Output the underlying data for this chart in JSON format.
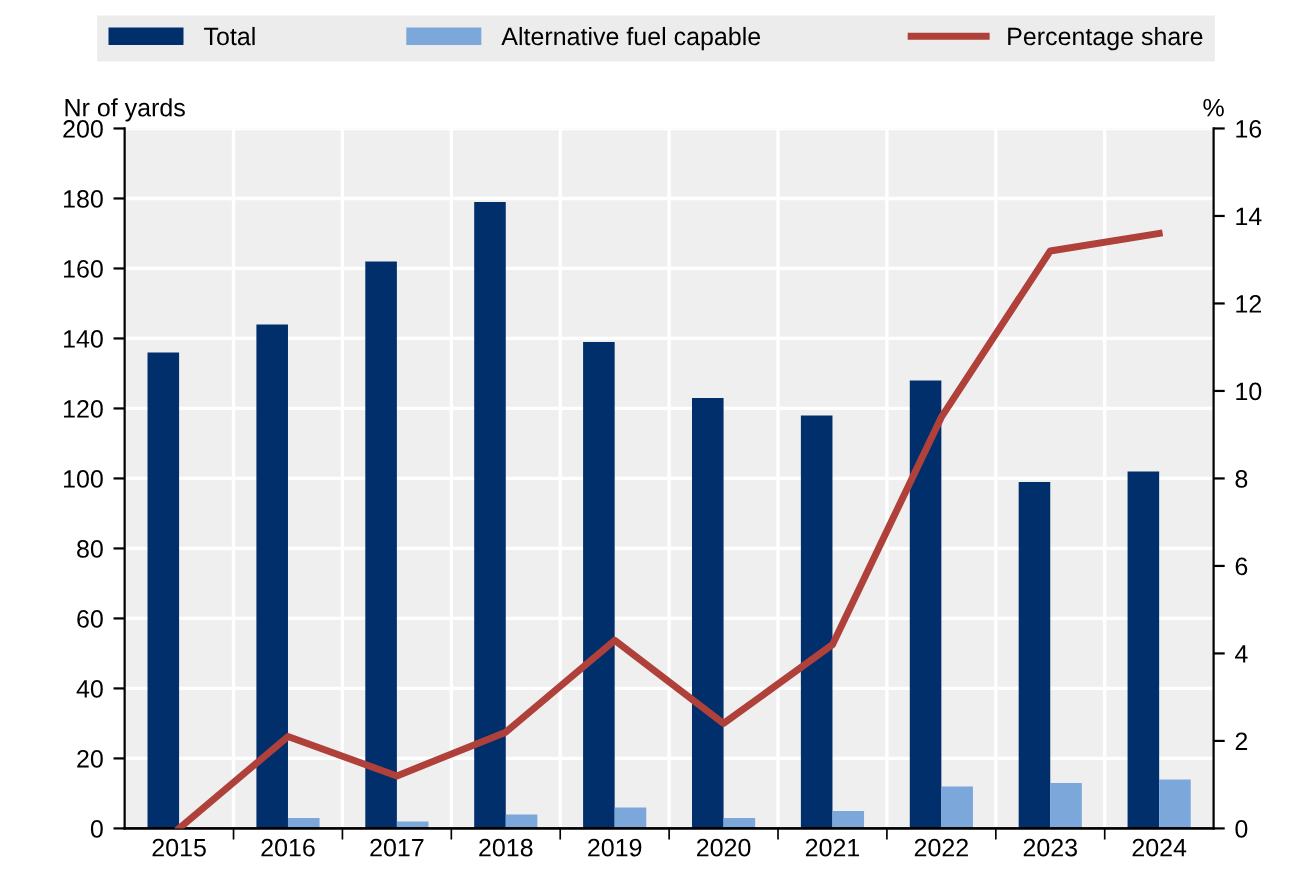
{
  "chart_data": {
    "type": "bar",
    "ylabel": "Nr of yards",
    "y2label": "%",
    "categories": [
      "2015",
      "2016",
      "2017",
      "2018",
      "2019",
      "2020",
      "2021",
      "2022",
      "2023",
      "2024"
    ],
    "series": [
      {
        "name": "Total",
        "color": "#002f6c",
        "values": [
          136,
          144,
          162,
          179,
          139,
          123,
          118,
          128,
          99,
          102
        ]
      },
      {
        "name": "Alternative fuel capable",
        "color": "#7ba7db",
        "values": [
          0,
          3,
          2,
          4,
          6,
          3,
          5,
          12,
          13,
          14
        ]
      },
      {
        "name": "Percentage share",
        "type": "line",
        "axis": "y2",
        "color": "#b0403a",
        "values": [
          0,
          2.1,
          1.2,
          2.2,
          4.3,
          2.4,
          4.2,
          9.4,
          13.2,
          13.6
        ]
      }
    ],
    "ylim": [
      0,
      200
    ],
    "yticks": [
      0,
      20,
      40,
      60,
      80,
      100,
      120,
      140,
      160,
      180,
      200
    ],
    "y2lim": [
      0,
      16
    ],
    "y2ticks": [
      0,
      2,
      4,
      6,
      8,
      10,
      12,
      14,
      16
    ],
    "grid": true,
    "legend": "top",
    "marker": "none",
    "line_style": "solid"
  }
}
